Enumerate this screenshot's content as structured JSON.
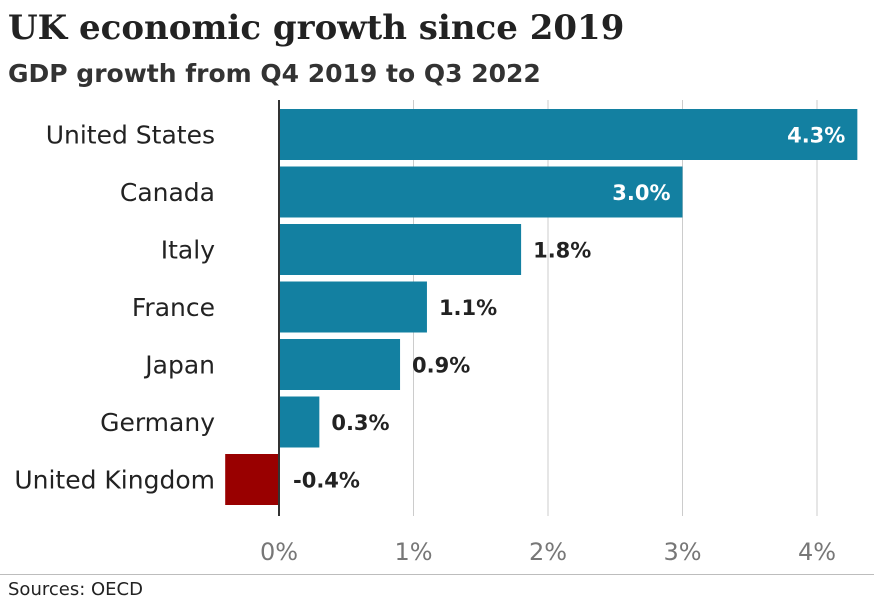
{
  "header": {
    "title": "UK economic growth since 2019",
    "subtitle": "GDP growth from Q4 2019 to Q3 2022"
  },
  "footer": {
    "source": "Sources: OECD"
  },
  "colors": {
    "bar": "#1380A1",
    "highlight": "#990000",
    "grid": "#cccccc",
    "axis": "#333333",
    "tick_label": "#777777"
  },
  "chart_data": {
    "type": "bar",
    "orientation": "horizontal",
    "title": "UK economic growth since 2019",
    "subtitle": "GDP growth from Q4 2019 to Q3 2022",
    "categories": [
      "United States",
      "Canada",
      "Italy",
      "France",
      "Japan",
      "Germany",
      "United Kingdom"
    ],
    "values": [
      4.3,
      3.0,
      1.8,
      1.1,
      0.9,
      0.3,
      -0.4
    ],
    "data_labels": [
      "4.3%",
      "3.0%",
      "1.8%",
      "1.1%",
      "0.9%",
      "0.3%",
      "-0.4%"
    ],
    "highlight_category": "United Kingdom",
    "xticks": [
      0,
      1,
      2,
      3,
      4
    ],
    "xtick_labels": [
      "0%",
      "1%",
      "2%",
      "3%",
      "4%"
    ],
    "xlim": [
      -0.4,
      4.3
    ],
    "grid": true,
    "legend": "none",
    "source": "Sources: OECD"
  }
}
